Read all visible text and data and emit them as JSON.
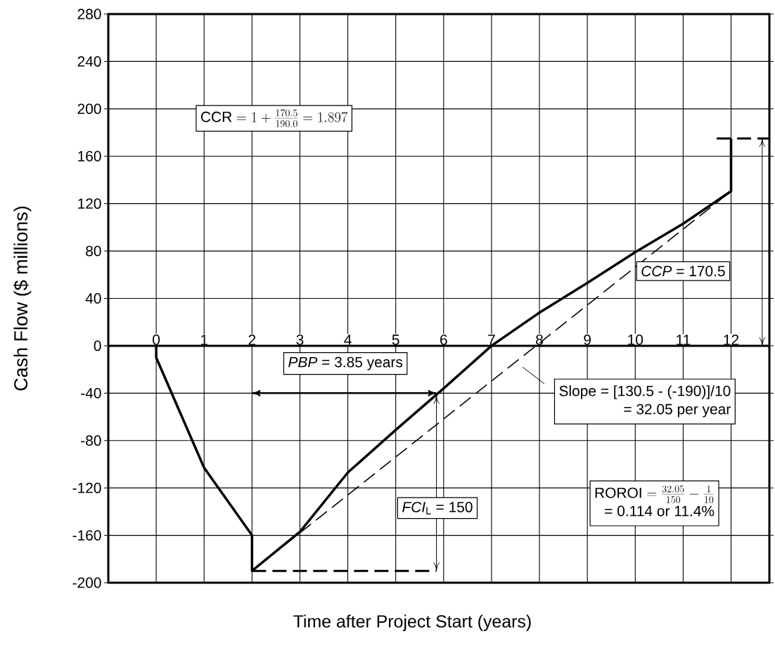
{
  "chart_data": {
    "type": "line",
    "xlabel": "Time after Project Start (years)",
    "ylabel": "Cash Flow ($ millions)",
    "xlim": [
      -1,
      12.8
    ],
    "xticks": [
      0,
      1,
      2,
      3,
      4,
      5,
      6,
      7,
      8,
      9,
      10,
      11,
      12
    ],
    "ylim": [
      -200,
      280
    ],
    "yticks": [
      -200,
      -160,
      -120,
      -80,
      -40,
      0,
      40,
      80,
      120,
      160,
      200,
      240,
      280
    ],
    "grid": true,
    "ref_lines": [
      {
        "axis": "y",
        "value": 0
      }
    ],
    "series": [
      {
        "color": "#000000",
        "line_style": "solid",
        "x": [
          0,
          0,
          1,
          2,
          2,
          3,
          4,
          5,
          6,
          7,
          8,
          9,
          10,
          11,
          12,
          12
        ],
        "values": [
          0,
          -10,
          -103,
          -160,
          -190,
          -157,
          -107,
          -71,
          -36,
          0,
          28,
          53,
          79,
          103,
          130.5,
          175
        ]
      },
      {
        "color": "#000000",
        "line_style": "dashed",
        "x": [
          2,
          12
        ],
        "values": [
          -190,
          130.5
        ]
      },
      {
        "color": "#000000",
        "line_style": "dashed",
        "x": [
          2,
          5.85
        ],
        "values": [
          -190,
          -190
        ]
      },
      {
        "color": "#000000",
        "line_style": "dashed",
        "x": [
          11.7,
          12.8
        ],
        "values": [
          175,
          175
        ]
      }
    ],
    "annotations": [
      "\\mathrm{CCR} = 1 + \\frac{170.5}{190.0} = 1.897",
      "*PBP* = 3.85 years",
      "*CCP* = 170.5",
      "Slope = [130.5 - (-190)]/10",
      "= 32.05 per year",
      "\\mathrm{ROROI} = \\frac{32.05}{150} - \\frac{1}{10}",
      "= 0.114 or 11.4%",
      "*FCI*$_{L}$ = 150"
    ]
  }
}
